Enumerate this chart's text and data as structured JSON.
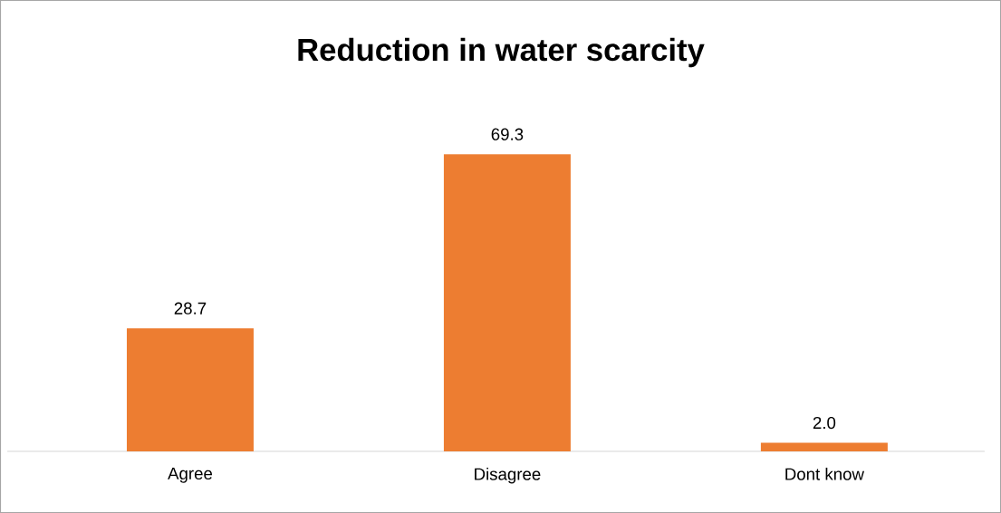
{
  "chart_data": {
    "type": "bar",
    "title": "Reduction in water scarcity",
    "categories": [
      "Agree",
      "Disagree",
      "Dont know"
    ],
    "values": [
      28.7,
      69.3,
      2.0
    ],
    "value_labels": [
      "28.7",
      "69.3",
      "2.0"
    ],
    "color": "#ed7d31"
  }
}
